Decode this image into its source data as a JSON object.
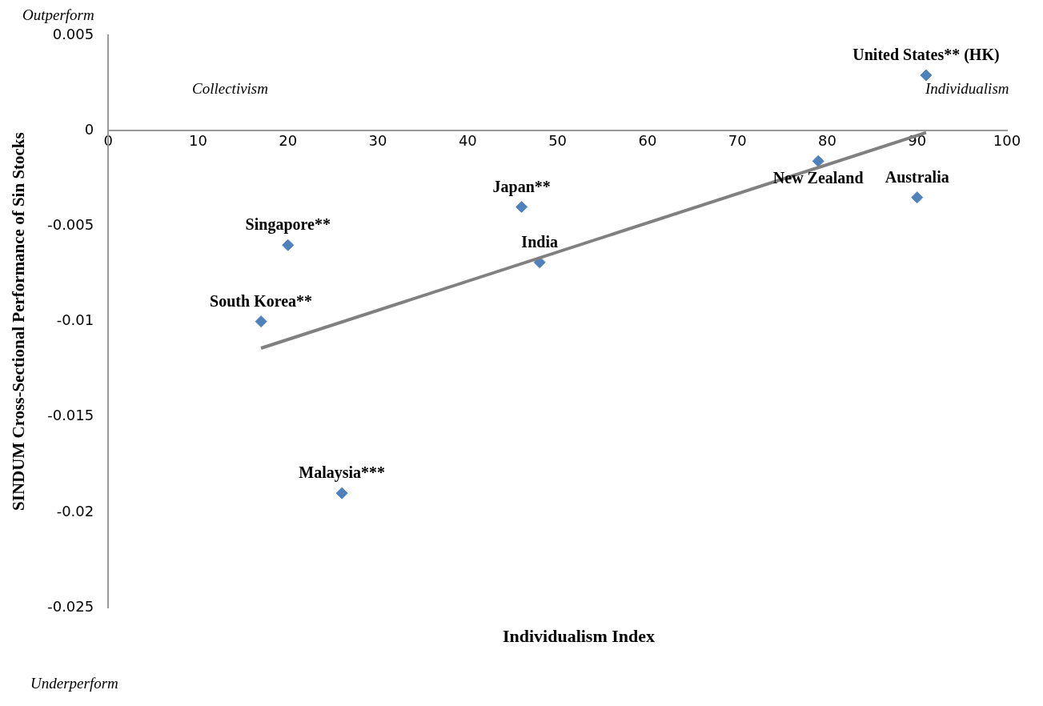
{
  "chart_data": {
    "type": "scatter",
    "xlabel": "Individualism Index",
    "ylabel": "SINDUM Cross-Sectional Performance of Sin Stocks",
    "xlim": [
      0,
      100
    ],
    "xticks": [
      0,
      10,
      20,
      30,
      40,
      50,
      60,
      70,
      80,
      90,
      100
    ],
    "ylim": [
      -0.025,
      0.005
    ],
    "yticks": [
      -0.025,
      -0.02,
      -0.015,
      -0.01,
      -0.005,
      0,
      0.005
    ],
    "grid": false,
    "legend": false,
    "marker": "diamond",
    "series": [
      {
        "color": "#4f81bd",
        "x": [
          91,
          20,
          17,
          46,
          48,
          79,
          90,
          26
        ],
        "values": [
          0.0029,
          -0.006,
          -0.01,
          -0.004,
          -0.0069,
          -0.0016,
          -0.0035,
          -0.019
        ]
      },
      {
        "type": "line",
        "color": "#808080",
        "marker": "none",
        "x": [
          17,
          91
        ],
        "values": [
          -0.0114,
          -0.0001
        ]
      }
    ],
    "annotations": [
      "Outperform",
      "Underperform",
      "Collectivism",
      "Individualism",
      {
        "text": "United States** (HK)",
        "x": 91,
        "y": 0.0029
      },
      {
        "text": "Singapore**",
        "x": 20,
        "y": -0.006
      },
      {
        "text": "South Korea**",
        "x": 17,
        "y": -0.01
      },
      {
        "text": "Japan**",
        "x": 46,
        "y": -0.004
      },
      {
        "text": "India",
        "x": 48,
        "y": -0.0069
      },
      {
        "text": "New Zealand",
        "x": 79,
        "y": -0.0016
      },
      {
        "text": "Australia",
        "x": 90,
        "y": -0.0035
      },
      {
        "text": "Malaysia***",
        "x": 26,
        "y": -0.019
      }
    ]
  }
}
